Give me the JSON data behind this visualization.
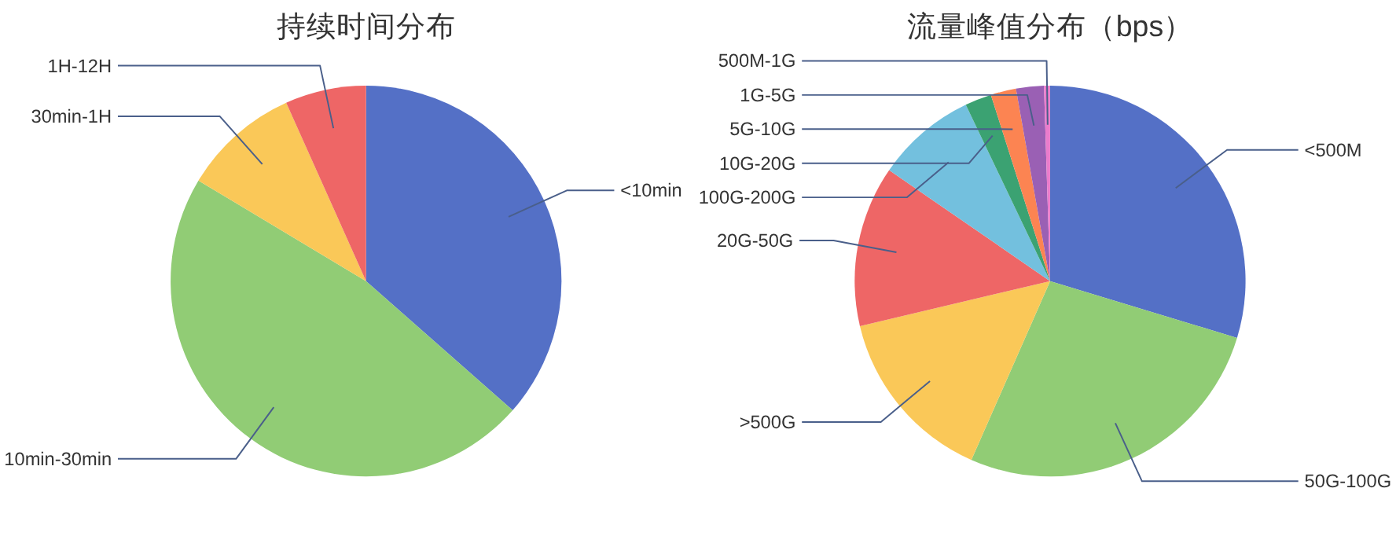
{
  "chart_data": [
    {
      "type": "pie",
      "title": "持续时间分布",
      "legend": false,
      "categories": [
        "<10min",
        "10min-30min",
        "30min-1H",
        "1H-12H"
      ],
      "values": [
        36.5,
        47.1,
        9.7,
        6.7
      ],
      "colors": [
        "#5470c6",
        "#91cc75",
        "#fac858",
        "#ee6666"
      ]
    },
    {
      "type": "pie",
      "title": "流量峰值分布（bps）",
      "legend": false,
      "categories": [
        "<500M",
        "50G-100G",
        ">500G",
        "20G-50G",
        "100G-200G",
        "10G-20G",
        "5G-10G",
        "1G-5G",
        "500M-1G"
      ],
      "values": [
        29.7,
        26.9,
        14.7,
        13.3,
        8.3,
        2.2,
        2.1,
        2.3,
        0.5
      ],
      "colors": [
        "#5470c6",
        "#91cc75",
        "#fac858",
        "#ee6666",
        "#73c0de",
        "#3ba272",
        "#fc8452",
        "#9a60b4",
        "#ea7ccc"
      ]
    }
  ]
}
